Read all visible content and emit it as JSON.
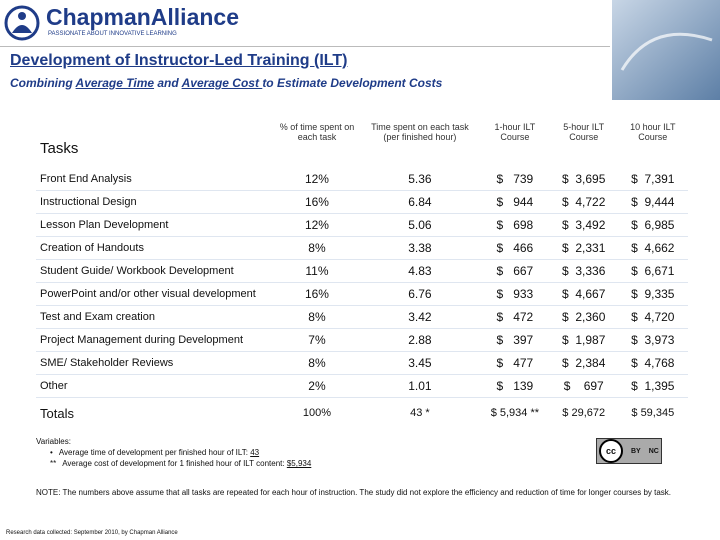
{
  "header": {
    "logo": "ChapmanAlliance",
    "tagline": "PASSIONATE ABOUT INNOVATIVE LEARNING"
  },
  "title": "Development of Instructor-Led Training (ILT)",
  "subtitle": [
    "Combining ",
    "Average Time",
    " and ",
    "Average Cost ",
    "to Estimate Development Costs"
  ],
  "table": {
    "columns": [
      "Tasks",
      "% of time spent on each task",
      "Time spent on each task (per finished hour)",
      "1-hour ILT Course",
      "5-hour ILT Course",
      "10 hour ILT Course"
    ],
    "rows": [
      [
        "Front End Analysis",
        "12%",
        "5.36",
        "$   739",
        "$  3,695",
        "$  7,391"
      ],
      [
        "Instructional Design",
        "16%",
        "6.84",
        "$   944",
        "$  4,722",
        "$  9,444"
      ],
      [
        "Lesson Plan Development",
        "12%",
        "5.06",
        "$   698",
        "$  3,492",
        "$  6,985"
      ],
      [
        "Creation of Handouts",
        "8%",
        "3.38",
        "$   466",
        "$  2,331",
        "$  4,662"
      ],
      [
        "Student Guide/ Workbook Development",
        "11%",
        "4.83",
        "$   667",
        "$  3,336",
        "$  6,671"
      ],
      [
        "PowerPoint and/or other visual development",
        "16%",
        "6.76",
        "$   933",
        "$  4,667",
        "$  9,335"
      ],
      [
        "Test and Exam creation",
        "8%",
        "3.42",
        "$   472",
        "$  2,360",
        "$  4,720"
      ],
      [
        "Project Management during Development",
        "7%",
        "2.88",
        "$   397",
        "$  1,987",
        "$  3,973"
      ],
      [
        "SME/ Stakeholder Reviews",
        "8%",
        "3.45",
        "$   477",
        "$  2,384",
        "$  4,768"
      ],
      [
        "Other",
        "2%",
        "1.01",
        "$   139",
        "$    697",
        "$  1,395"
      ]
    ],
    "totals": [
      "Totals",
      "100%",
      "43 *",
      "$ 5,934 **",
      "$ 29,672",
      "$ 59,345"
    ]
  },
  "variables": {
    "label": "Variables:",
    "items": [
      {
        "marker": "•",
        "text": "Average time of development per finished hour of ILT: ",
        "value": "43"
      },
      {
        "marker": "**",
        "text": "Average cost of development for 1 finished hour of ILT content: ",
        "value": "$5,934"
      }
    ]
  },
  "license": {
    "badge": "cc",
    "terms": [
      "BY",
      "NC"
    ]
  },
  "note": "NOTE: The numbers above assume that all tasks are repeated for each hour of instruction. The study did not explore the efficiency and reduction of time for longer courses by task.",
  "footer": "Research data collected: September 2010, by Chapman Alliance"
}
